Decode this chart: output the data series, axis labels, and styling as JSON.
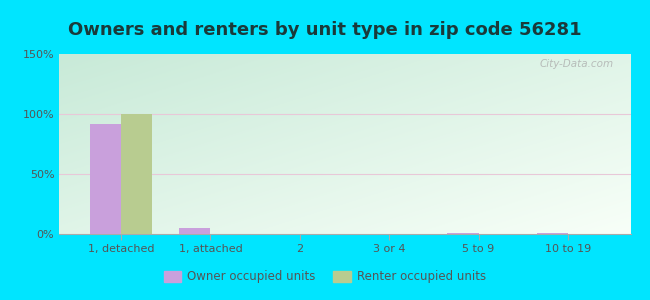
{
  "title": "Owners and renters by unit type in zip code 56281",
  "categories": [
    "1, detached",
    "1, attached",
    "2",
    "3 or 4",
    "5 to 9",
    "10 to 19"
  ],
  "owner_values": [
    92,
    5,
    0,
    0,
    1,
    1
  ],
  "renter_values": [
    100,
    0,
    0,
    0,
    0,
    0
  ],
  "owner_color": "#c9a0dc",
  "renter_color": "#b8cc90",
  "ylim": [
    0,
    150
  ],
  "yticks": [
    0,
    50,
    100,
    150
  ],
  "ytick_labels": [
    "0%",
    "50%",
    "100%",
    "150%"
  ],
  "grad_top_left": "#c8ead8",
  "grad_bottom_right": "#f0fff8",
  "outer_background": "#00e5ff",
  "title_fontsize": 13,
  "title_color": "#1a3a3a",
  "bar_width": 0.35,
  "watermark": "City-Data.com",
  "tick_color": "#888888",
  "grid_color": "#ddeecc",
  "legend_label_owner": "Owner occupied units",
  "legend_label_renter": "Renter occupied units"
}
